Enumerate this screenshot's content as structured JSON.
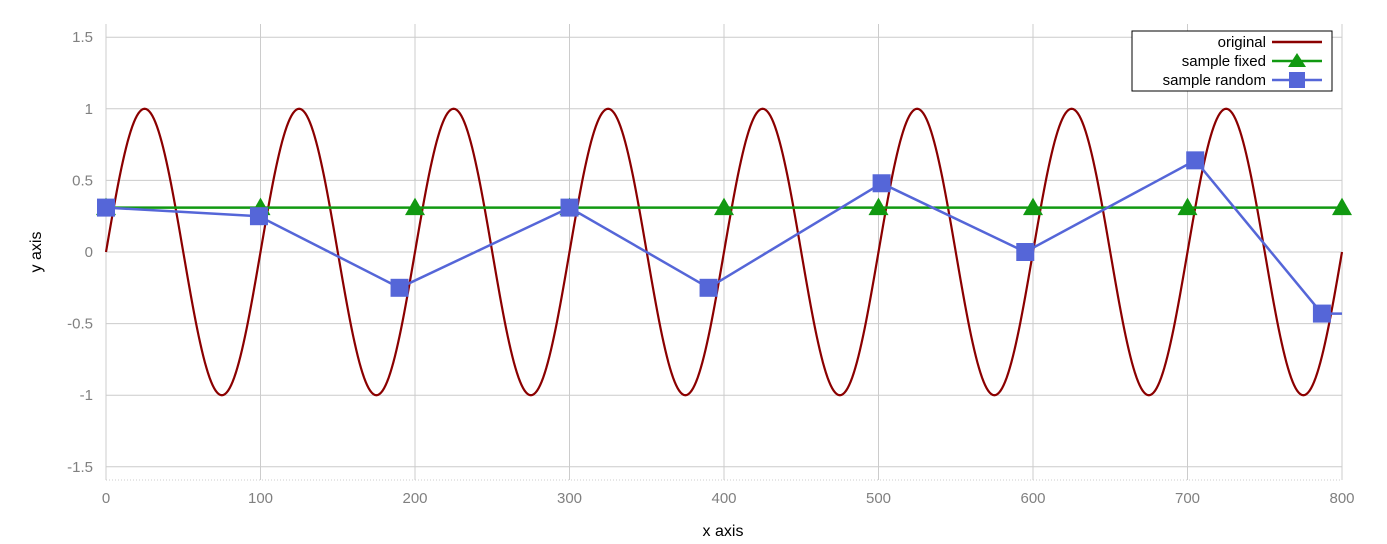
{
  "chart_data": {
    "type": "line",
    "title": "",
    "xlabel": "x axis",
    "ylabel": "y axis",
    "xlim": [
      0,
      800
    ],
    "ylim": [
      -1.6,
      1.6
    ],
    "grid": true,
    "x_ticks": [
      "0",
      "100",
      "200",
      "300",
      "400",
      "500",
      "600",
      "700",
      "800"
    ],
    "y_ticks": [
      "1.5",
      "1",
      "0.5",
      "0",
      "-0.5",
      "-1",
      "-1.5"
    ],
    "legend_position": "top-right",
    "series": [
      {
        "name": "original",
        "color": "#8b0000",
        "marker": "none",
        "function": "sin(2*pi*x/100)",
        "sample_step": 2,
        "phase_offset_x": 0,
        "amplitude": 1
      },
      {
        "name": "sample fixed",
        "color": "#119911",
        "marker": "triangle",
        "x": [
          0,
          100,
          200,
          300,
          400,
          500,
          600,
          700,
          800
        ],
        "y": [
          0.31,
          0.31,
          0.31,
          0.31,
          0.31,
          0.31,
          0.31,
          0.31,
          0.31
        ]
      },
      {
        "name": "sample random",
        "color": "#5566d8",
        "marker": "square",
        "x": [
          0,
          99,
          190,
          300,
          390,
          502,
          595,
          705,
          787,
          800
        ],
        "y": [
          0.31,
          0.25,
          -0.25,
          0.31,
          -0.25,
          0.48,
          0.0,
          0.64,
          -0.43,
          -0.43
        ],
        "marker_mask": [
          true,
          true,
          true,
          true,
          true,
          true,
          true,
          true,
          true,
          false
        ]
      }
    ]
  }
}
